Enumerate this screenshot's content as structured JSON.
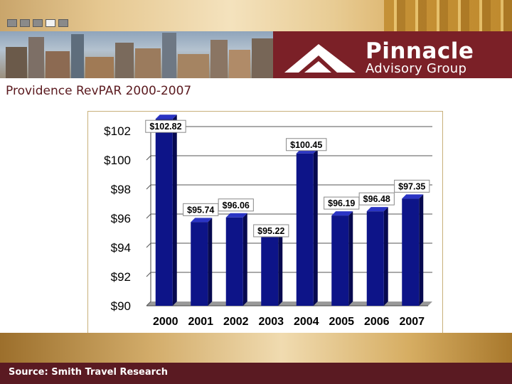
{
  "header": {
    "brand_name": "Pinnacle",
    "brand_tagline": "Advisory Group",
    "brand_color": "#7b2027"
  },
  "slide_title": "Providence RevPAR 2000-2007",
  "footer": {
    "source_text": "Source: Smith Travel Research"
  },
  "chart_data": {
    "type": "bar",
    "title": "",
    "xlabel": "",
    "ylabel": "",
    "categories": [
      "2000",
      "2001",
      "2002",
      "2003",
      "2004",
      "2005",
      "2006",
      "2007"
    ],
    "values": [
      102.82,
      95.74,
      96.06,
      95.22,
      100.45,
      96.19,
      96.48,
      97.35
    ],
    "data_labels": [
      "$102.82",
      "$95.74",
      "$96.06",
      "$95.22",
      "$100.45",
      "$96.19",
      "$96.48",
      "$97.35"
    ],
    "ylim": [
      90,
      102
    ],
    "yticks": [
      90,
      92,
      94,
      96,
      98,
      100,
      102
    ],
    "ytick_labels": [
      "$90",
      "$92",
      "$94",
      "$96",
      "$98",
      "$100",
      "$102"
    ],
    "grid": true,
    "legend": "none",
    "bar_color": "#0d1488"
  }
}
